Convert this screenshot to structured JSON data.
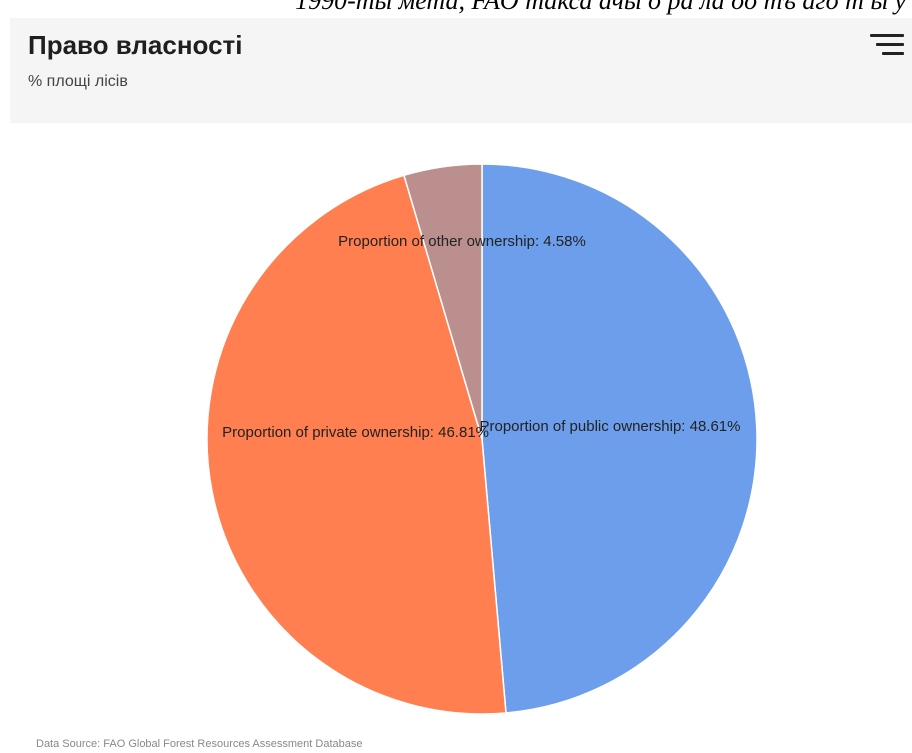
{
  "top_fragment": "1990-ты мета, FAO такса ачы о ра ла оо тъ аго т ы у",
  "header": {
    "title": "Право власності",
    "subtitle": "% площі лісів",
    "menu_icon": "hamburger-menu-icon"
  },
  "chart_data": {
    "type": "pie",
    "title": "Право власності",
    "subtitle": "% площі лісів",
    "slices": [
      {
        "label": "Proportion of public ownership: 48.61%",
        "name": "Proportion of public ownership",
        "value": 48.61,
        "color": "#6d9eeb"
      },
      {
        "label": "Proportion of private ownership: 46.81%",
        "name": "Proportion of private ownership",
        "value": 46.81,
        "color": "#ff7f50"
      },
      {
        "label": "Proportion of other ownership: 4.58%",
        "name": "Proportion of other ownership",
        "value": 4.58,
        "color": "#bc8f8f"
      }
    ]
  },
  "footer": {
    "source": "Data Source: FAO Global Forest Resources Assessment Database"
  }
}
